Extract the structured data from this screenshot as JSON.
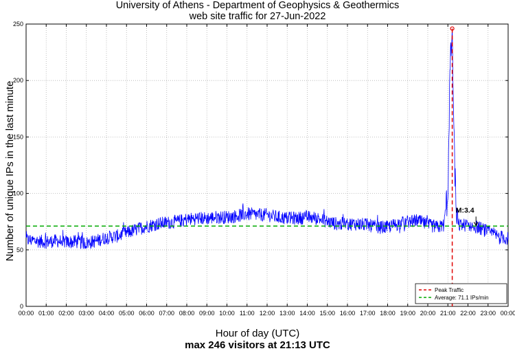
{
  "chart_data": {
    "type": "line",
    "title": "University of Athens - Department of Geophysics & Geothermics",
    "subtitle": "web site traffic for 27-Jun-2022",
    "xlabel": "Hour of day (UTC)",
    "ylabel": "Number of unique IPs in the last minute",
    "caption": "max 246 visitors at 21:13 UTC",
    "x_ticks": [
      "00:00",
      "01:00",
      "02:00",
      "03:00",
      "04:00",
      "05:00",
      "06:00",
      "07:00",
      "08:00",
      "09:00",
      "10:00",
      "11:00",
      "12:00",
      "13:00",
      "14:00",
      "15:00",
      "16:00",
      "17:00",
      "18:00",
      "19:00",
      "20:00",
      "21:00",
      "22:00",
      "23:00",
      "00:00"
    ],
    "y_ticks": [
      0,
      50,
      100,
      150,
      200,
      250
    ],
    "xlim_hours": [
      0,
      24
    ],
    "ylim": [
      0,
      250
    ],
    "grid": true,
    "series": [
      {
        "color": "#0000ff",
        "x_hours": [
          0,
          0.5,
          1,
          1.5,
          2,
          2.5,
          3,
          3.5,
          4,
          4.5,
          5,
          5.5,
          6,
          6.5,
          7,
          7.5,
          8,
          8.5,
          9,
          9.5,
          10,
          10.5,
          11,
          11.5,
          12,
          12.5,
          13,
          13.5,
          14,
          14.5,
          15,
          15.5,
          16,
          16.5,
          17,
          17.5,
          18,
          18.5,
          19,
          19.5,
          20,
          20.5,
          20.8,
          21.0,
          21.1,
          21.217,
          21.3,
          21.4,
          21.5,
          22,
          22.5,
          23,
          23.5,
          24
        ],
        "values": [
          59,
          58,
          57,
          58,
          57,
          57,
          56,
          58,
          61,
          62,
          65,
          68,
          71,
          73,
          74,
          75,
          77,
          78,
          78,
          79,
          79,
          80,
          82,
          81,
          81,
          79,
          78,
          78,
          79,
          78,
          75,
          73,
          73,
          73,
          72,
          70,
          70,
          73,
          75,
          76,
          72,
          70,
          72,
          100,
          205,
          246,
          150,
          90,
          72,
          72,
          70,
          66,
          62,
          60
        ]
      }
    ],
    "peak": {
      "x_hours": 21.217,
      "value": 246,
      "color": "#e00000"
    },
    "average": {
      "value": 71.1,
      "color": "#00aa00"
    },
    "annotation": {
      "text": "M:3.4",
      "x_hours": 22.4,
      "value": 71
    },
    "legend": {
      "position": "bottom-right",
      "entries": [
        {
          "label": "Peak Traffic",
          "color": "#e00000"
        },
        {
          "label": "Average: 71.1 IPs/min",
          "color": "#00aa00"
        }
      ]
    }
  }
}
